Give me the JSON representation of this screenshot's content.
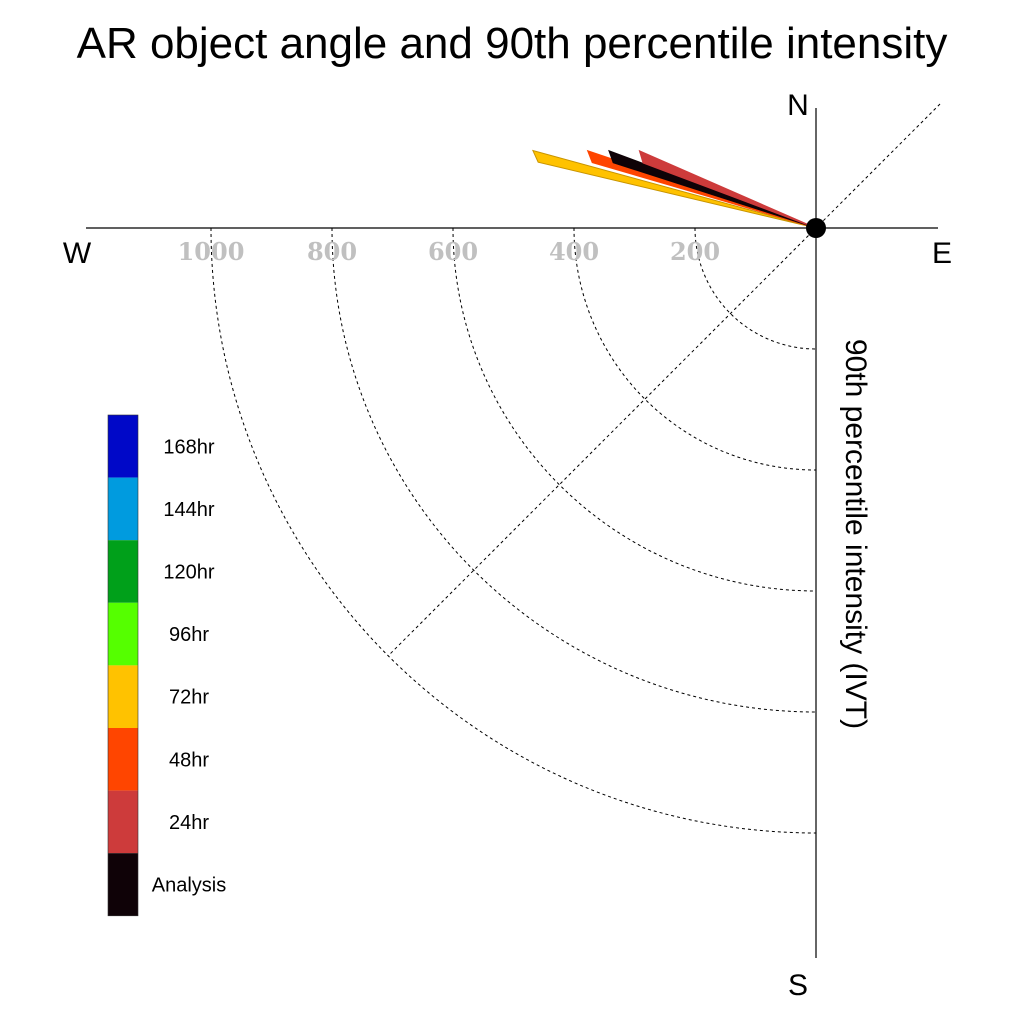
{
  "chart_data": {
    "type": "polar-vector",
    "title": "AR object angle and 90th percentile intensity",
    "ylabel": "90th percentile intensity (IVT)",
    "compass": {
      "north": "N",
      "south": "S",
      "east": "E",
      "west": "W"
    },
    "radial_ticks": [
      "1000",
      "800",
      "600",
      "400",
      "200"
    ],
    "radial_tick_values": [
      1000,
      800,
      600,
      400,
      200
    ],
    "rlim": [
      0,
      1200
    ],
    "series": [
      {
        "name": "72hr",
        "color": "#ffc200",
        "x": -470,
        "y": 200
      },
      {
        "name": "48hr",
        "color": "#ff4500",
        "x": -380,
        "y": 200
      },
      {
        "name": "Analysis",
        "color": "#0f0207",
        "x": -345,
        "y": 200
      },
      {
        "name": "24hr",
        "color": "#cd3b3b",
        "x": -295,
        "y": 200
      }
    ],
    "legend": {
      "position": "left",
      "items": [
        {
          "label": "168hr",
          "color": "#0008c8"
        },
        {
          "label": "144hr",
          "color": "#009bdf"
        },
        {
          "label": "120hr",
          "color": "#00a01a"
        },
        {
          "label": "96hr",
          "color": "#55ff00"
        },
        {
          "label": "72hr",
          "color": "#ffc200"
        },
        {
          "label": "48hr",
          "color": "#ff4500"
        },
        {
          "label": "24hr",
          "color": "#cd3b3b"
        },
        {
          "label": "Analysis",
          "color": "#0f0207"
        }
      ]
    }
  }
}
